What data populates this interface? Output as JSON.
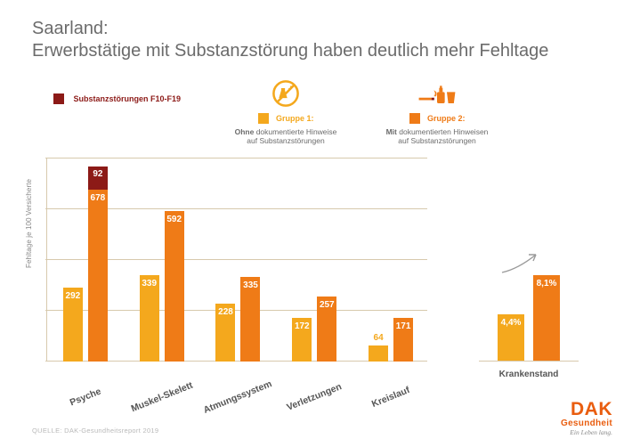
{
  "title_line1": "Saarland:",
  "title_line2": "Erwerbstätige mit Substanzstörung haben deutlich mehr Fehltage",
  "colors": {
    "group1": "#f4a81d",
    "group2": "#ef7b17",
    "f10": "#8c1a17",
    "grid": "#d7c9ad",
    "title": "#6b6b6b",
    "logo": "#e95d0f"
  },
  "legend": {
    "f10": {
      "label": "Substanzstörungen F10-F19"
    },
    "group1": {
      "name": "Gruppe 1:",
      "desc_pre": "Ohne",
      "desc_post": " dokumentierte Hinweise\nauf Substanzstörungen"
    },
    "group2": {
      "name": "Gruppe 2:",
      "desc_pre": "Mit",
      "desc_post": " dokumentierten Hinweisen\nauf Substanzstörungen"
    }
  },
  "chart": {
    "type": "grouped-bar",
    "y_label": "Fehltage je 100 Versicherte",
    "y_max": 800,
    "gridlines": [
      0,
      200,
      400,
      600,
      800
    ],
    "categories": [
      {
        "label": "Psyche",
        "g1": 292,
        "g2": 678,
        "f10": 92
      },
      {
        "label": "Muskel-Skelett",
        "g1": 339,
        "g2": 592
      },
      {
        "label": "Atmungssystem",
        "g1": 228,
        "g2": 335
      },
      {
        "label": "Verletzungen",
        "g1": 172,
        "g2": 257
      },
      {
        "label": "Kreislauf",
        "g1": 64,
        "g2": 171
      }
    ]
  },
  "right_chart": {
    "label": "Krankenstand",
    "y_max": 10,
    "g1_text": "4,4%",
    "g2_text": "8,1%",
    "g1_val": 4.4,
    "g2_val": 8.1
  },
  "source": "QUELLE: DAK-Gesundheitsreport 2019",
  "logo": {
    "main": "DAK",
    "sub": "Gesundheit",
    "slogan": "Ein Leben lang."
  }
}
